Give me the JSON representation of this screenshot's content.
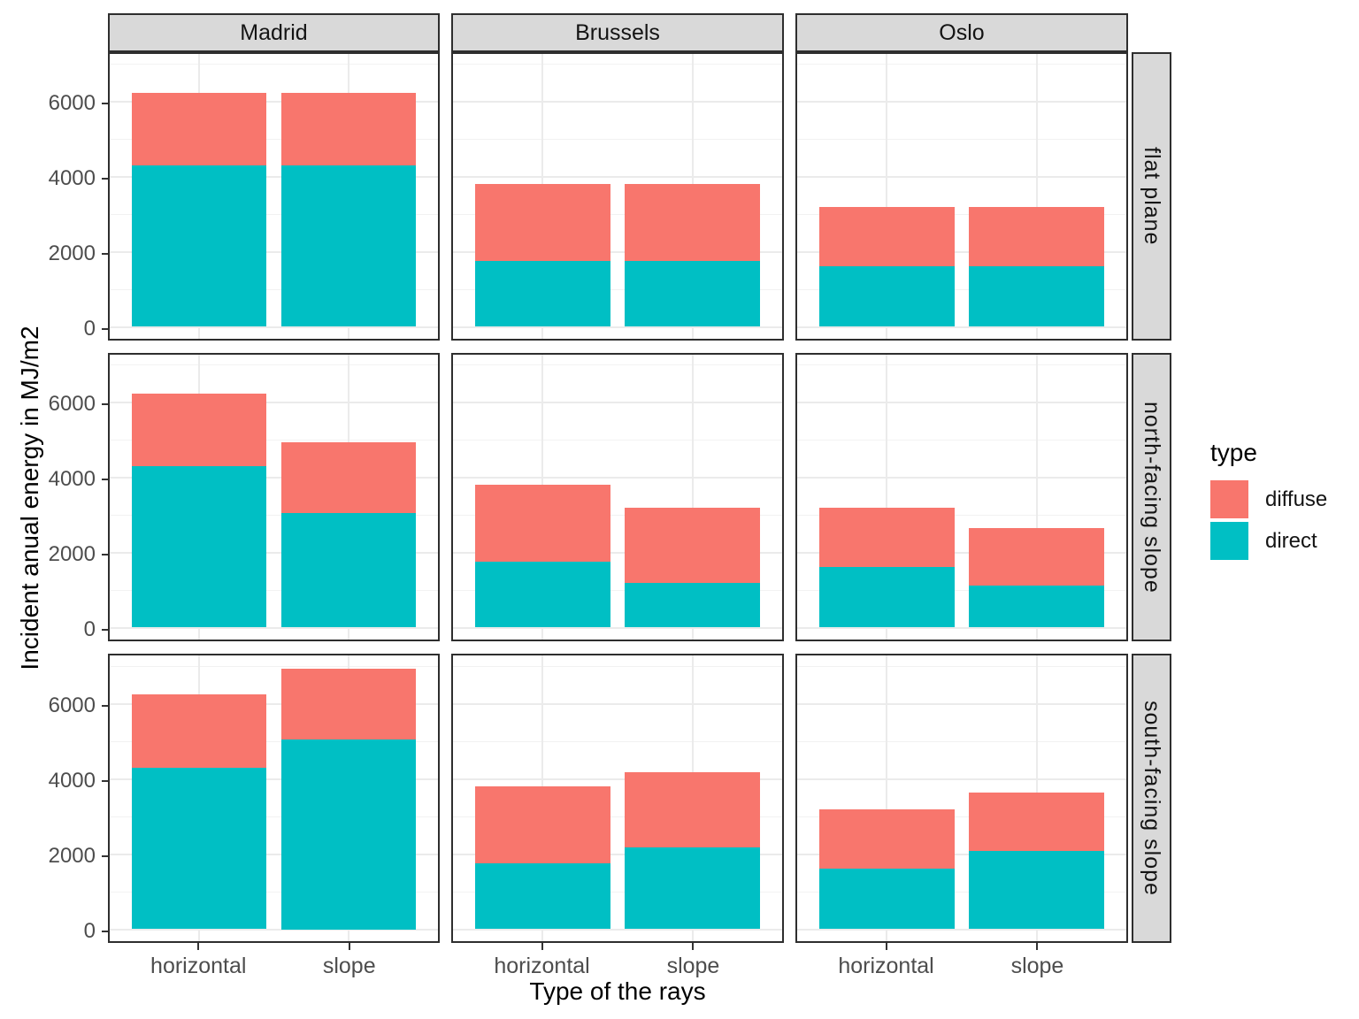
{
  "chart_data": {
    "type": "bar",
    "stacked": true,
    "xlabel": "Type of the rays",
    "ylabel": "Incident anual energy in MJ/m2",
    "col_facets": [
      "Madrid",
      "Brussels",
      "Oslo"
    ],
    "row_facets": [
      "flat plane",
      "north-facing slope",
      "south-facing slope"
    ],
    "categories": [
      "horizontal",
      "slope"
    ],
    "y_ticks": [
      0,
      2000,
      4000,
      6000
    ],
    "y_tick_labels": [
      "0",
      "2000",
      "4000",
      "6000"
    ],
    "y_minor_ticks": [
      1000,
      3000,
      5000,
      7000
    ],
    "ylim": [
      0,
      7350
    ],
    "grid": true,
    "legend": {
      "title": "type",
      "position": "right",
      "entries": [
        {
          "label": "diffuse",
          "color": "#F8766D"
        },
        {
          "label": "direct",
          "color": "#00BFC4"
        }
      ]
    },
    "series_colors": {
      "direct": "#00BFC4",
      "diffuse": "#F8766D"
    },
    "panels": [
      {
        "row_facet": "flat plane",
        "col_facet": "Madrid",
        "bars": [
          {
            "category": "horizontal",
            "direct": 4290,
            "diffuse": 1930
          },
          {
            "category": "slope",
            "direct": 4290,
            "diffuse": 1930
          }
        ]
      },
      {
        "row_facet": "flat plane",
        "col_facet": "Brussels",
        "bars": [
          {
            "category": "horizontal",
            "direct": 1760,
            "diffuse": 2050
          },
          {
            "category": "slope",
            "direct": 1760,
            "diffuse": 2050
          }
        ]
      },
      {
        "row_facet": "flat plane",
        "col_facet": "Oslo",
        "bars": [
          {
            "category": "horizontal",
            "direct": 1610,
            "diffuse": 1590
          },
          {
            "category": "slope",
            "direct": 1610,
            "diffuse": 1590
          }
        ]
      },
      {
        "row_facet": "north-facing slope",
        "col_facet": "Madrid",
        "bars": [
          {
            "category": "horizontal",
            "direct": 4290,
            "diffuse": 1930
          },
          {
            "category": "slope",
            "direct": 3040,
            "diffuse": 1900
          }
        ]
      },
      {
        "row_facet": "north-facing slope",
        "col_facet": "Brussels",
        "bars": [
          {
            "category": "horizontal",
            "direct": 1760,
            "diffuse": 2040
          },
          {
            "category": "slope",
            "direct": 1180,
            "diffuse": 2000
          }
        ]
      },
      {
        "row_facet": "north-facing slope",
        "col_facet": "Oslo",
        "bars": [
          {
            "category": "horizontal",
            "direct": 1610,
            "diffuse": 1580
          },
          {
            "category": "slope",
            "direct": 1110,
            "diffuse": 1530
          }
        ]
      },
      {
        "row_facet": "south-facing slope",
        "col_facet": "Madrid",
        "bars": [
          {
            "category": "horizontal",
            "direct": 4290,
            "diffuse": 1950
          },
          {
            "category": "slope",
            "direct": 5050,
            "diffuse": 1890
          }
        ]
      },
      {
        "row_facet": "south-facing slope",
        "col_facet": "Brussels",
        "bars": [
          {
            "category": "horizontal",
            "direct": 1760,
            "diffuse": 2040
          },
          {
            "category": "slope",
            "direct": 2180,
            "diffuse": 2000
          }
        ]
      },
      {
        "row_facet": "south-facing slope",
        "col_facet": "Oslo",
        "bars": [
          {
            "category": "horizontal",
            "direct": 1610,
            "diffuse": 1590
          },
          {
            "category": "slope",
            "direct": 2090,
            "diffuse": 1550
          }
        ]
      }
    ]
  }
}
